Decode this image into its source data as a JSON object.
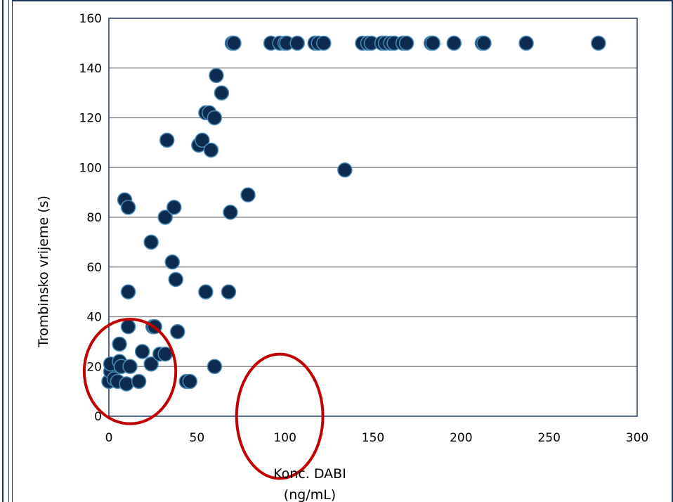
{
  "colors": {
    "frame": "#1f3864",
    "plot_border": "#1f3864",
    "grid": "#7f7f7f",
    "marker_fill": "#0d2b4e",
    "marker_stroke": "#4a8bb5",
    "circle": "#c00000"
  },
  "chart_data": {
    "type": "scatter",
    "title": "",
    "xlabel": [
      "Konc. DABI",
      "(ng/mL)"
    ],
    "ylabel": "Trombinsko vrijeme (s)",
    "xlim": [
      0,
      300
    ],
    "ylim": [
      0,
      160
    ],
    "xticks": [
      0,
      50,
      100,
      150,
      200,
      250,
      300
    ],
    "yticks": [
      0,
      20,
      40,
      60,
      80,
      100,
      120,
      140,
      160
    ],
    "grid": "horizontal",
    "legend": "none",
    "series": [
      {
        "points": [
          [
            0,
            14
          ],
          [
            1,
            18
          ],
          [
            1,
            21
          ],
          [
            3,
            15
          ],
          [
            5,
            14
          ],
          [
            6,
            29
          ],
          [
            6,
            22
          ],
          [
            7,
            20
          ],
          [
            10,
            13
          ],
          [
            12,
            20
          ],
          [
            9,
            87
          ],
          [
            11,
            84
          ],
          [
            11,
            50
          ],
          [
            11,
            36
          ],
          [
            17,
            14
          ],
          [
            19,
            26
          ],
          [
            24,
            21
          ],
          [
            25,
            36
          ],
          [
            26,
            36
          ],
          [
            24,
            70
          ],
          [
            29,
            25
          ],
          [
            32,
            25
          ],
          [
            32,
            80
          ],
          [
            33,
            111
          ],
          [
            36,
            62
          ],
          [
            37,
            84
          ],
          [
            38,
            55
          ],
          [
            39,
            34
          ],
          [
            44,
            14
          ],
          [
            46,
            14
          ],
          [
            51,
            109
          ],
          [
            53,
            111
          ],
          [
            55,
            122
          ],
          [
            55,
            50
          ],
          [
            57,
            122
          ],
          [
            58,
            107
          ],
          [
            60,
            120
          ],
          [
            60,
            20
          ],
          [
            61,
            137
          ],
          [
            64,
            130
          ],
          [
            68,
            50
          ],
          [
            69,
            82
          ],
          [
            70,
            150
          ],
          [
            71,
            150
          ],
          [
            79,
            89
          ],
          [
            92,
            150
          ],
          [
            97,
            150
          ],
          [
            100,
            150
          ],
          [
            101,
            150
          ],
          [
            107,
            150
          ],
          [
            117,
            150
          ],
          [
            119,
            150
          ],
          [
            122,
            150
          ],
          [
            134,
            99
          ],
          [
            144,
            150
          ],
          [
            147,
            150
          ],
          [
            149,
            150
          ],
          [
            155,
            150
          ],
          [
            157,
            150
          ],
          [
            160,
            150
          ],
          [
            162,
            150
          ],
          [
            167,
            150
          ],
          [
            169,
            150
          ],
          [
            183,
            150
          ],
          [
            184,
            150
          ],
          [
            196,
            150
          ],
          [
            212,
            150
          ],
          [
            213,
            150
          ],
          [
            237,
            150
          ],
          [
            278,
            150
          ]
        ]
      }
    ],
    "annotations": [
      {
        "shape": "ellipse",
        "cx": 12,
        "cy": 18,
        "rx": 26,
        "ry": 21
      },
      {
        "shape": "ellipse",
        "cx": 97,
        "cy": 0,
        "rx": 24.5,
        "ry": 25
      }
    ]
  }
}
